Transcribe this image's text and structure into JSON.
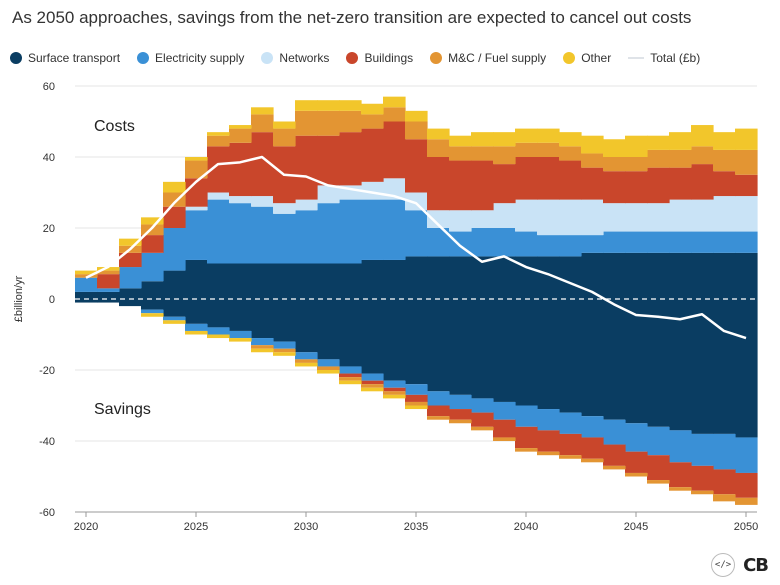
{
  "title": "As 2050 approaches, savings from the net-zero transition are expected to cancel out costs",
  "legend": [
    {
      "label": "Surface transport",
      "color": "#0a3d62",
      "type": "dot"
    },
    {
      "label": "Electricity supply",
      "color": "#3a90d6",
      "type": "dot"
    },
    {
      "label": "Networks",
      "color": "#c9e3f6",
      "type": "dot"
    },
    {
      "label": "Buildings",
      "color": "#c9462b",
      "type": "dot"
    },
    {
      "label": "M&C / Fuel supply",
      "color": "#e39533",
      "type": "dot"
    },
    {
      "label": "Other",
      "color": "#f2c62b",
      "type": "dot"
    },
    {
      "label": "Total (£b)",
      "color": "#dfe3e8",
      "type": "line"
    }
  ],
  "annotations": {
    "costs": "Costs",
    "savings": "Savings"
  },
  "footer": {
    "embed_icon": "code-embed-icon",
    "logo": "CB"
  },
  "chart_data": {
    "type": "area",
    "stacked": true,
    "step": true,
    "title": "As 2050 approaches, savings from the net-zero transition are expected to cancel out costs",
    "xlabel": "",
    "ylabel": "£billion/yr",
    "xlim": [
      2019.5,
      2050.5
    ],
    "ylim": [
      -60,
      60
    ],
    "x_ticks": [
      2020,
      2025,
      2030,
      2035,
      2040,
      2045,
      2050
    ],
    "y_ticks": [
      -60,
      -40,
      -20,
      0,
      20,
      40,
      60
    ],
    "x": [
      2020,
      2021,
      2022,
      2023,
      2024,
      2025,
      2026,
      2027,
      2028,
      2029,
      2030,
      2031,
      2032,
      2033,
      2034,
      2035,
      2036,
      2037,
      2038,
      2039,
      2040,
      2041,
      2042,
      2043,
      2044,
      2045,
      2046,
      2047,
      2048,
      2049,
      2050
    ],
    "series": [
      {
        "name": "Surface transport",
        "color": "#0a3d62",
        "costs": [
          2,
          2,
          3,
          5,
          8,
          11,
          10,
          10,
          10,
          10,
          10,
          10,
          10,
          11,
          11,
          12,
          12,
          12,
          12,
          12,
          12,
          12,
          12,
          13,
          13,
          13,
          13,
          13,
          13,
          13,
          13
        ],
        "savings": [
          -1,
          -1,
          -2,
          -3,
          -5,
          -7,
          -8,
          -9,
          -11,
          -12,
          -15,
          -17,
          -19,
          -21,
          -23,
          -24,
          -26,
          -27,
          -28,
          -29,
          -30,
          -31,
          -32,
          -33,
          -34,
          -35,
          -36,
          -37,
          -38,
          -38,
          -39
        ]
      },
      {
        "name": "Electricity supply",
        "color": "#3a90d6",
        "costs": [
          4,
          1,
          6,
          8,
          12,
          14,
          18,
          17,
          16,
          14,
          15,
          17,
          18,
          17,
          17,
          13,
          8,
          7,
          8,
          8,
          7,
          6,
          6,
          5,
          6,
          6,
          6,
          6,
          6,
          6,
          6
        ],
        "savings": [
          0,
          0,
          0,
          -1,
          -1,
          -2,
          -2,
          -2,
          -2,
          -2,
          -2,
          -2,
          -2,
          -2,
          -2,
          -3,
          -4,
          -4,
          -4,
          -5,
          -6,
          -6,
          -6,
          -6,
          -7,
          -8,
          -8,
          -9,
          -9,
          -10,
          -10
        ]
      },
      {
        "name": "Networks",
        "color": "#c9e3f6",
        "costs": [
          0,
          0,
          0,
          0,
          0,
          1,
          2,
          2,
          3,
          3,
          3,
          5,
          4,
          5,
          6,
          5,
          5,
          6,
          5,
          7,
          9,
          10,
          10,
          10,
          8,
          8,
          8,
          9,
          9,
          10,
          10
        ],
        "savings": [
          0,
          0,
          0,
          0,
          0,
          0,
          0,
          0,
          0,
          0,
          0,
          0,
          0,
          0,
          0,
          0,
          0,
          0,
          0,
          0,
          0,
          0,
          0,
          0,
          0,
          0,
          0,
          0,
          0,
          0,
          0
        ]
      },
      {
        "name": "Buildings",
        "color": "#c9462b",
        "costs": [
          0,
          4,
          4,
          5,
          6,
          8,
          13,
          15,
          18,
          16,
          18,
          14,
          15,
          15,
          16,
          15,
          15,
          14,
          14,
          11,
          12,
          12,
          11,
          9,
          9,
          9,
          10,
          9,
          10,
          7,
          6
        ],
        "savings": [
          0,
          0,
          0,
          0,
          0,
          0,
          0,
          0,
          0,
          0,
          0,
          0,
          -1,
          -1,
          -1,
          -2,
          -3,
          -3,
          -4,
          -5,
          -6,
          -6,
          -6,
          -6,
          -6,
          -6,
          -7,
          -7,
          -7,
          -7,
          -7
        ]
      },
      {
        "name": "M&C / Fuel supply",
        "color": "#e39533",
        "costs": [
          1,
          1,
          2,
          3,
          4,
          5,
          3,
          4,
          5,
          5,
          7,
          7,
          6,
          4,
          4,
          5,
          5,
          4,
          4,
          5,
          4,
          4,
          4,
          4,
          4,
          4,
          5,
          5,
          5,
          6,
          7
        ],
        "savings": [
          0,
          0,
          0,
          0,
          0,
          0,
          0,
          0,
          -1,
          -1,
          -1,
          -1,
          -1,
          -1,
          -1,
          -1,
          -1,
          -1,
          -1,
          -1,
          -1,
          -1,
          -1,
          -1,
          -1,
          -1,
          -1,
          -1,
          -1,
          -2,
          -2
        ]
      },
      {
        "name": "Other",
        "color": "#f2c62b",
        "costs": [
          1,
          1,
          2,
          2,
          3,
          1,
          1,
          1,
          2,
          2,
          3,
          3,
          3,
          3,
          3,
          3,
          3,
          3,
          4,
          4,
          4,
          4,
          4,
          5,
          5,
          6,
          4,
          5,
          6,
          5,
          6
        ],
        "savings": [
          0,
          0,
          0,
          -1,
          -1,
          -1,
          -1,
          -1,
          -1,
          -1,
          -1,
          -1,
          -1,
          -1,
          -1,
          -1,
          0,
          0,
          0,
          0,
          0,
          0,
          0,
          0,
          0,
          0,
          0,
          0,
          0,
          0,
          0
        ]
      }
    ],
    "total": {
      "name": "Total (£b)",
      "color": "#ffffff",
      "values": [
        6,
        9,
        14,
        20,
        27,
        33,
        38,
        38.5,
        40,
        35,
        34.5,
        32,
        31,
        30,
        29,
        27,
        21,
        15,
        10.5,
        12,
        9,
        7,
        4.5,
        2,
        -1.5,
        -4.5,
        -5,
        -5.7,
        -4.3,
        -9,
        -11
      ]
    }
  }
}
